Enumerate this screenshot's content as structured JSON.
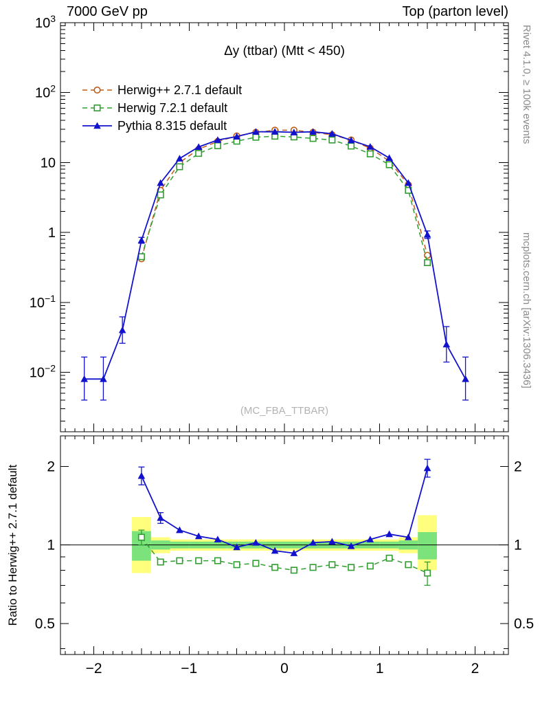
{
  "header": {
    "left": "7000 GeV pp",
    "right": "Top (parton level)"
  },
  "side_captions": {
    "top_right": "Rivet 4.1.0, ≥ 100k events",
    "bottom_right": "mcplots.cern.ch [arXiv:1306.3436]"
  },
  "watermark": "(MC_FBA_TTBAR)",
  "ratio_ylabel": "Ratio to Herwig++ 2.7.1 default",
  "chart_data": {
    "type": "line",
    "title": "Δy (ttbar) (Mtt < 450)",
    "xlim": [
      -2.35,
      2.35
    ],
    "xticks": [
      -2,
      -1,
      0,
      1,
      2
    ],
    "xtick_labels": [
      "−2",
      "−1",
      "0",
      "1",
      "2"
    ],
    "main": {
      "ylim": [
        0.00141,
        1000
      ],
      "ytick_values": [
        1000,
        100,
        10,
        1,
        0.1,
        0.01
      ],
      "ytick_labels": [
        "10^3",
        "10^2",
        "10",
        "1",
        "10^−1",
        "10^−2"
      ],
      "series": [
        {
          "name": "Herwig++ 2.7.1 default",
          "color": "#bf5b17",
          "marker": "circle-open",
          "line": "dashed",
          "x": [
            -1.5,
            -1.3,
            -1.1,
            -0.9,
            -0.7,
            -0.5,
            -0.3,
            -0.1,
            0.1,
            0.3,
            0.5,
            0.7,
            0.9,
            1.1,
            1.3,
            1.5
          ],
          "y": [
            0.42,
            4.0,
            10.0,
            15.5,
            20.0,
            24.0,
            27.0,
            29.0,
            29.0,
            27.0,
            25.0,
            21.0,
            16.0,
            10.5,
            4.8,
            0.47
          ],
          "err_lo": null,
          "err_hi": null
        },
        {
          "name": "Herwig 7.2.1 default",
          "color": "#2f9e2f",
          "marker": "square-open",
          "line": "dashed",
          "x": [
            -1.5,
            -1.3,
            -1.1,
            -0.9,
            -0.7,
            -0.5,
            -0.3,
            -0.1,
            0.1,
            0.3,
            0.5,
            0.7,
            0.9,
            1.1,
            1.3,
            1.5
          ],
          "y": [
            0.45,
            3.44,
            8.7,
            13.5,
            17.4,
            20.2,
            23.0,
            23.8,
            23.2,
            22.1,
            21.0,
            17.2,
            13.3,
            9.3,
            4.0,
            0.37
          ],
          "err_lo": null,
          "err_hi": null
        },
        {
          "name": "Pythia 8.315 default",
          "color": "#1212cc",
          "marker": "triangle-filled",
          "line": "solid",
          "x": [
            -2.1,
            -1.9,
            -1.7,
            -1.5,
            -1.3,
            -1.1,
            -0.9,
            -0.7,
            -0.5,
            -0.3,
            -0.1,
            0.1,
            0.3,
            0.5,
            0.7,
            0.9,
            1.1,
            1.3,
            1.5,
            1.7,
            1.9
          ],
          "y": [
            0.008,
            0.008,
            0.04,
            0.77,
            5.1,
            11.4,
            16.7,
            21.0,
            23.5,
            27.5,
            27.6,
            27.0,
            27.5,
            25.8,
            20.8,
            16.8,
            11.6,
            5.1,
            0.93,
            0.025,
            0.008
          ],
          "err_lo": [
            0.004,
            0.004,
            0.026,
            0.7,
            null,
            null,
            null,
            null,
            null,
            null,
            null,
            null,
            null,
            null,
            null,
            null,
            null,
            null,
            0.82,
            0.014,
            0.004
          ],
          "err_hi": [
            0.0165,
            0.0165,
            0.062,
            0.85,
            null,
            null,
            null,
            null,
            null,
            null,
            null,
            null,
            null,
            null,
            null,
            null,
            null,
            null,
            1.05,
            0.045,
            0.0165
          ]
        }
      ]
    },
    "ratio": {
      "ylim": [
        0.38,
        2.62
      ],
      "ytick_values": [
        0.5,
        1,
        2
      ],
      "ytick_labels": [
        "0.5",
        "1",
        "2"
      ],
      "reference": 1,
      "bands": {
        "halfwidth": 0.1,
        "yellow_color": "#ffff7d",
        "green_color": "#7ce27c",
        "x": [
          -1.5,
          -1.3,
          -1.1,
          -0.9,
          -0.7,
          -0.5,
          -0.3,
          -0.1,
          0.1,
          0.3,
          0.5,
          0.7,
          0.9,
          1.1,
          1.3,
          1.5
        ],
        "yellow_lo": [
          0.78,
          0.93,
          0.95,
          0.95,
          0.95,
          0.95,
          0.95,
          0.95,
          0.95,
          0.95,
          0.95,
          0.95,
          0.95,
          0.95,
          0.93,
          0.8
        ],
        "yellow_hi": [
          1.28,
          1.07,
          1.05,
          1.05,
          1.05,
          1.05,
          1.05,
          1.05,
          1.05,
          1.05,
          1.05,
          1.05,
          1.05,
          1.05,
          1.07,
          1.3
        ],
        "green_lo": [
          0.87,
          0.96,
          0.97,
          0.97,
          0.97,
          0.97,
          0.97,
          0.97,
          0.97,
          0.97,
          0.97,
          0.97,
          0.97,
          0.97,
          0.96,
          0.88
        ],
        "green_hi": [
          1.13,
          1.04,
          1.03,
          1.03,
          1.03,
          1.03,
          1.03,
          1.03,
          1.03,
          1.03,
          1.03,
          1.03,
          1.03,
          1.03,
          1.04,
          1.12
        ]
      },
      "series": [
        {
          "name": "Herwig 7.2.1 default",
          "color": "#2f9e2f",
          "marker": "square-open",
          "line": "dashed",
          "x": [
            -1.5,
            -1.3,
            -1.1,
            -0.9,
            -0.7,
            -0.5,
            -0.3,
            -0.1,
            0.1,
            0.3,
            0.5,
            0.7,
            0.9,
            1.1,
            1.3,
            1.5
          ],
          "y": [
            1.07,
            0.86,
            0.87,
            0.87,
            0.87,
            0.84,
            0.85,
            0.82,
            0.8,
            0.82,
            0.84,
            0.82,
            0.83,
            0.89,
            0.84,
            0.78
          ],
          "err_lo": [
            1.0,
            null,
            null,
            null,
            null,
            null,
            null,
            null,
            null,
            null,
            null,
            null,
            null,
            null,
            null,
            0.7
          ],
          "err_hi": [
            1.14,
            null,
            null,
            null,
            null,
            null,
            null,
            null,
            null,
            null,
            null,
            null,
            null,
            null,
            null,
            0.86
          ]
        },
        {
          "name": "Pythia 8.315 default",
          "color": "#1212cc",
          "marker": "triangle-filled",
          "line": "solid",
          "x": [
            -1.5,
            -1.3,
            -1.1,
            -0.9,
            -0.7,
            -0.5,
            -0.3,
            -0.1,
            0.1,
            0.3,
            0.5,
            0.7,
            0.9,
            1.1,
            1.3,
            1.5
          ],
          "y": [
            1.84,
            1.27,
            1.14,
            1.08,
            1.05,
            0.98,
            1.02,
            0.95,
            0.93,
            1.02,
            1.03,
            0.99,
            1.05,
            1.1,
            1.07,
            1.97
          ],
          "err_lo": [
            1.7,
            1.21,
            null,
            null,
            null,
            null,
            null,
            null,
            null,
            null,
            null,
            null,
            null,
            null,
            null,
            1.82
          ],
          "err_hi": [
            1.99,
            1.33,
            null,
            null,
            null,
            null,
            null,
            null,
            null,
            null,
            null,
            null,
            null,
            null,
            null,
            2.13
          ]
        }
      ]
    }
  }
}
